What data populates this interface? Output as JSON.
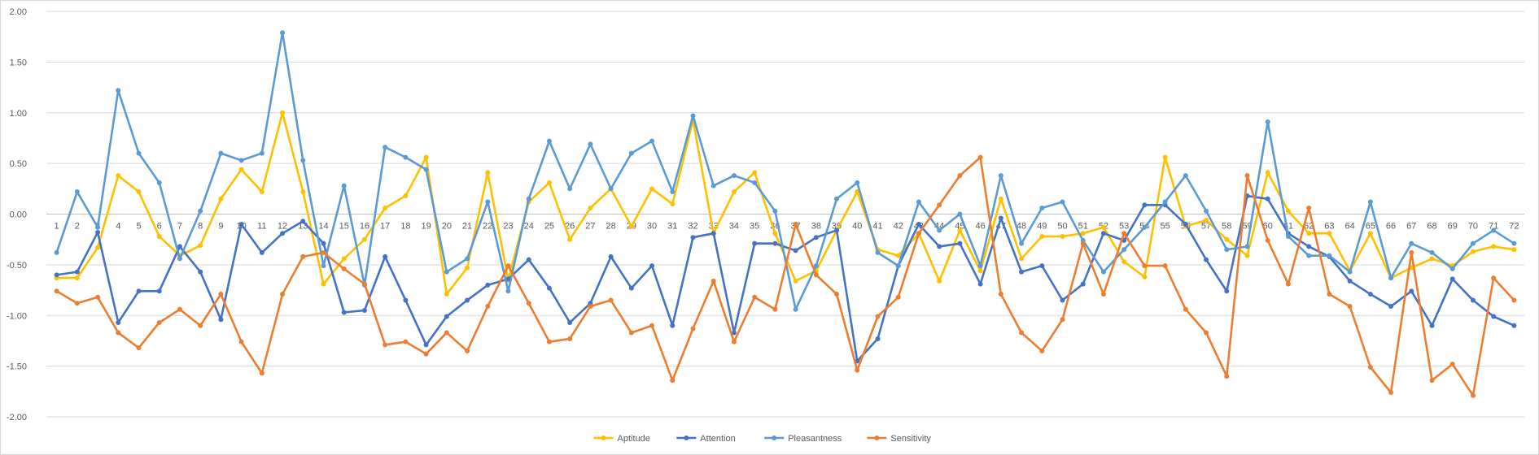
{
  "chart_data": {
    "type": "line",
    "title": "",
    "xlabel": "",
    "ylabel": "",
    "ylim": [
      -2.0,
      2.0
    ],
    "y_ticks": [
      "2.00",
      "1.50",
      "1.00",
      "0.50",
      "0.00",
      "-0.50",
      "-1.00",
      "-1.50",
      "-2.00"
    ],
    "y_tick_values": [
      2.0,
      1.5,
      1.0,
      0.5,
      0.0,
      -0.5,
      -1.0,
      -1.5,
      -2.0
    ],
    "grid": "horizontal",
    "legend_position": "bottom",
    "categories": [
      "1",
      "2",
      "3",
      "4",
      "5",
      "6",
      "7",
      "8",
      "9",
      "10",
      "11",
      "12",
      "13",
      "14",
      "15",
      "16",
      "17",
      "18",
      "19",
      "20",
      "21",
      "22",
      "23",
      "24",
      "25",
      "26",
      "27",
      "28",
      "29",
      "30",
      "31",
      "32",
      "33",
      "34",
      "35",
      "36",
      "37",
      "38",
      "39",
      "40",
      "41",
      "42",
      "43",
      "44",
      "45",
      "46",
      "47",
      "48",
      "49",
      "50",
      "51",
      "52",
      "53",
      "54",
      "55",
      "56",
      "57",
      "58",
      "59",
      "60",
      "61",
      "62",
      "63",
      "64",
      "65",
      "66",
      "67",
      "68",
      "69",
      "70",
      "71",
      "72"
    ],
    "series": [
      {
        "name": "Aptitude",
        "color": "#FFC000",
        "values": [
          -0.63,
          -0.63,
          -0.33,
          0.38,
          0.22,
          -0.22,
          -0.41,
          -0.31,
          0.15,
          0.44,
          0.22,
          1.0,
          0.22,
          -0.69,
          -0.44,
          -0.25,
          0.06,
          0.18,
          0.56,
          -0.79,
          -0.53,
          0.41,
          -0.65,
          0.12,
          0.31,
          -0.25,
          0.06,
          0.25,
          -0.12,
          0.25,
          0.1,
          0.93,
          -0.19,
          0.22,
          0.41,
          -0.19,
          -0.66,
          -0.56,
          -0.16,
          0.22,
          -0.35,
          -0.41,
          -0.19,
          -0.66,
          -0.16,
          -0.56,
          0.15,
          -0.44,
          -0.22,
          -0.22,
          -0.19,
          -0.13,
          -0.47,
          -0.62,
          0.56,
          -0.12,
          -0.06,
          -0.25,
          -0.41,
          0.41,
          0.03,
          -0.19,
          -0.19,
          -0.56,
          -0.19,
          -0.63,
          -0.53,
          -0.44,
          -0.51,
          -0.37,
          -0.32,
          -0.35
        ]
      },
      {
        "name": "Attention",
        "color": "#4472C4",
        "values": [
          -0.6,
          -0.57,
          -0.18,
          -1.07,
          -0.76,
          -0.76,
          -0.32,
          -0.57,
          -1.04,
          -0.1,
          -0.38,
          -0.19,
          -0.07,
          -0.29,
          -0.97,
          -0.95,
          -0.42,
          -0.85,
          -1.29,
          -1.01,
          -0.85,
          -0.7,
          -0.64,
          -0.45,
          -0.73,
          -1.07,
          -0.88,
          -0.42,
          -0.73,
          -0.51,
          -1.1,
          -0.23,
          -0.19,
          -1.17,
          -0.29,
          -0.29,
          -0.36,
          -0.23,
          -0.16,
          -1.45,
          -1.23,
          -0.51,
          -0.1,
          -0.32,
          -0.29,
          -0.69,
          -0.04,
          -0.57,
          -0.51,
          -0.85,
          -0.69,
          -0.19,
          -0.26,
          0.09,
          0.09,
          -0.1,
          -0.45,
          -0.76,
          0.18,
          0.15,
          -0.19,
          -0.32,
          -0.42,
          -0.66,
          -0.79,
          -0.91,
          -0.76,
          -1.1,
          -0.64,
          -0.85,
          -1.01,
          -1.1
        ]
      },
      {
        "name": "Pleasantness",
        "color": "#5B9BD5",
        "values": [
          -0.38,
          0.22,
          -0.13,
          1.22,
          0.6,
          0.31,
          -0.44,
          0.03,
          0.6,
          0.53,
          0.6,
          1.79,
          0.53,
          -0.51,
          0.28,
          -0.7,
          0.66,
          0.56,
          0.44,
          -0.57,
          -0.44,
          0.12,
          -0.76,
          0.15,
          0.72,
          0.25,
          0.69,
          0.25,
          0.6,
          0.72,
          0.22,
          0.97,
          0.28,
          0.38,
          0.31,
          0.03,
          -0.94,
          -0.51,
          0.15,
          0.31,
          -0.38,
          -0.51,
          0.12,
          -0.16,
          0.0,
          -0.51,
          0.38,
          -0.29,
          0.06,
          0.12,
          -0.26,
          -0.57,
          -0.35,
          -0.13,
          0.12,
          0.38,
          0.03,
          -0.35,
          -0.32,
          0.91,
          -0.22,
          -0.41,
          -0.41,
          -0.57,
          0.12,
          -0.63,
          -0.29,
          -0.38,
          -0.54,
          -0.29,
          -0.16,
          -0.29
        ]
      },
      {
        "name": "Sensitivity",
        "color": "#ED7D31",
        "values": [
          -0.76,
          -0.88,
          -0.82,
          -1.17,
          -1.32,
          -1.07,
          -0.94,
          -1.1,
          -0.79,
          -1.26,
          -1.57,
          -0.79,
          -0.42,
          -0.38,
          -0.54,
          -0.69,
          -1.29,
          -1.26,
          -1.38,
          -1.17,
          -1.35,
          -0.91,
          -0.51,
          -0.88,
          -1.26,
          -1.23,
          -0.91,
          -0.85,
          -1.17,
          -1.1,
          -1.64,
          -1.13,
          -0.66,
          -1.26,
          -0.82,
          -0.94,
          -0.1,
          -0.6,
          -0.79,
          -1.54,
          -1.01,
          -0.82,
          -0.19,
          0.09,
          0.38,
          0.56,
          -0.79,
          -1.17,
          -1.35,
          -1.04,
          -0.29,
          -0.79,
          -0.19,
          -0.51,
          -0.51,
          -0.94,
          -1.17,
          -1.6,
          0.38,
          -0.26,
          -0.69,
          0.06,
          -0.79,
          -0.91,
          -1.51,
          -1.76,
          -0.38,
          -1.64,
          -1.48,
          -1.79,
          -0.63,
          -0.85
        ]
      }
    ]
  }
}
